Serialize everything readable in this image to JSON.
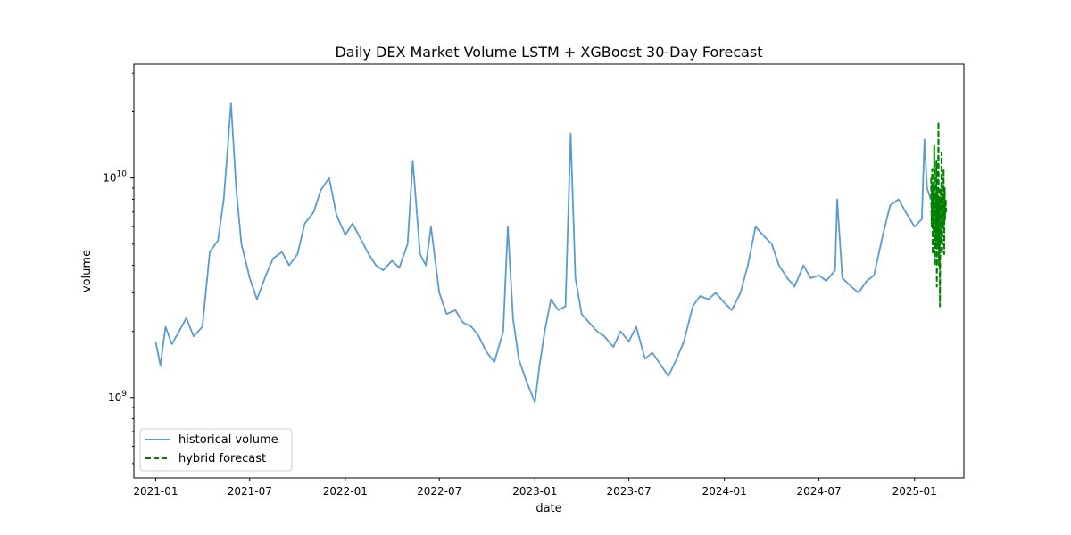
{
  "chart_data": {
    "type": "line",
    "title": "Daily DEX Market Volume LSTM + XGBoost 30-Day Forecast",
    "xlabel": "date",
    "ylabel": "volume",
    "y_scale": "log",
    "xlim": [
      "2020-11-20",
      "2025-04-06"
    ],
    "ylim": [
      430000000,
      33000000000
    ],
    "x_ticks": [
      "2021-01-01",
      "2021-07-01",
      "2022-01-01",
      "2022-07-01",
      "2023-01-01",
      "2023-07-01",
      "2024-01-01",
      "2024-07-01",
      "2025-01-01"
    ],
    "x_tick_labels": [
      "2021-01",
      "2021-07",
      "2022-01",
      "2022-07",
      "2023-01",
      "2023-07",
      "2024-01",
      "2024-07",
      "2025-01"
    ],
    "y_ticks": [
      1000000000,
      10000000000
    ],
    "y_tick_labels": [
      [
        "10",
        "9"
      ],
      [
        "10",
        "10"
      ]
    ],
    "grid": false,
    "legend_position": "lower-left",
    "series": [
      {
        "name": "historical volume",
        "color": "#5a9bd0",
        "style": "solid",
        "points": [
          [
            "2021-01-01",
            1800000000
          ],
          [
            "2021-01-10",
            1400000000
          ],
          [
            "2021-01-20",
            2100000000
          ],
          [
            "2021-02-01",
            1750000000
          ],
          [
            "2021-02-15",
            2000000000
          ],
          [
            "2021-03-01",
            2300000000
          ],
          [
            "2021-03-15",
            1900000000
          ],
          [
            "2021-04-01",
            2100000000
          ],
          [
            "2021-04-15",
            4600000000
          ],
          [
            "2021-05-01",
            5200000000
          ],
          [
            "2021-05-12",
            8000000000
          ],
          [
            "2021-05-20",
            14000000000
          ],
          [
            "2021-05-26",
            22000000000
          ],
          [
            "2021-06-05",
            9000000000
          ],
          [
            "2021-06-15",
            5000000000
          ],
          [
            "2021-07-01",
            3500000000
          ],
          [
            "2021-07-15",
            2800000000
          ],
          [
            "2021-08-01",
            3600000000
          ],
          [
            "2021-08-15",
            4300000000
          ],
          [
            "2021-09-01",
            4600000000
          ],
          [
            "2021-09-15",
            4000000000
          ],
          [
            "2021-10-01",
            4500000000
          ],
          [
            "2021-10-15",
            6200000000
          ],
          [
            "2021-11-01",
            7000000000
          ],
          [
            "2021-11-15",
            8800000000
          ],
          [
            "2021-12-01",
            10000000000
          ],
          [
            "2021-12-15",
            6800000000
          ],
          [
            "2022-01-01",
            5500000000
          ],
          [
            "2022-01-15",
            6200000000
          ],
          [
            "2022-02-01",
            5200000000
          ],
          [
            "2022-02-15",
            4500000000
          ],
          [
            "2022-03-01",
            4000000000
          ],
          [
            "2022-03-15",
            3800000000
          ],
          [
            "2022-04-01",
            4200000000
          ],
          [
            "2022-04-15",
            3900000000
          ],
          [
            "2022-05-01",
            5000000000
          ],
          [
            "2022-05-11",
            12000000000
          ],
          [
            "2022-05-25",
            4500000000
          ],
          [
            "2022-06-05",
            4000000000
          ],
          [
            "2022-06-15",
            6000000000
          ],
          [
            "2022-07-01",
            3000000000
          ],
          [
            "2022-07-15",
            2400000000
          ],
          [
            "2022-08-01",
            2500000000
          ],
          [
            "2022-08-15",
            2200000000
          ],
          [
            "2022-09-01",
            2100000000
          ],
          [
            "2022-09-15",
            1900000000
          ],
          [
            "2022-10-01",
            1600000000
          ],
          [
            "2022-10-15",
            1450000000
          ],
          [
            "2022-11-01",
            2000000000
          ],
          [
            "2022-11-10",
            6000000000
          ],
          [
            "2022-11-20",
            2300000000
          ],
          [
            "2022-12-01",
            1500000000
          ],
          [
            "2022-12-15",
            1200000000
          ],
          [
            "2023-01-01",
            950000000
          ],
          [
            "2023-01-10",
            1400000000
          ],
          [
            "2023-01-20",
            2000000000
          ],
          [
            "2023-02-01",
            2800000000
          ],
          [
            "2023-02-15",
            2500000000
          ],
          [
            "2023-03-01",
            2600000000
          ],
          [
            "2023-03-11",
            16000000000
          ],
          [
            "2023-03-20",
            3500000000
          ],
          [
            "2023-04-01",
            2400000000
          ],
          [
            "2023-04-15",
            2200000000
          ],
          [
            "2023-05-01",
            2000000000
          ],
          [
            "2023-05-15",
            1900000000
          ],
          [
            "2023-06-01",
            1700000000
          ],
          [
            "2023-06-15",
            2000000000
          ],
          [
            "2023-07-01",
            1800000000
          ],
          [
            "2023-07-15",
            2100000000
          ],
          [
            "2023-08-01",
            1500000000
          ],
          [
            "2023-08-15",
            1600000000
          ],
          [
            "2023-09-01",
            1400000000
          ],
          [
            "2023-09-15",
            1250000000
          ],
          [
            "2023-10-01",
            1500000000
          ],
          [
            "2023-10-15",
            1800000000
          ],
          [
            "2023-11-01",
            2600000000
          ],
          [
            "2023-11-15",
            2900000000
          ],
          [
            "2023-12-01",
            2800000000
          ],
          [
            "2023-12-15",
            3000000000
          ],
          [
            "2024-01-01",
            2700000000
          ],
          [
            "2024-01-15",
            2500000000
          ],
          [
            "2024-02-01",
            3000000000
          ],
          [
            "2024-02-15",
            4000000000
          ],
          [
            "2024-03-01",
            6000000000
          ],
          [
            "2024-03-15",
            5500000000
          ],
          [
            "2024-04-01",
            5000000000
          ],
          [
            "2024-04-15",
            4000000000
          ],
          [
            "2024-05-01",
            3500000000
          ],
          [
            "2024-05-15",
            3200000000
          ],
          [
            "2024-06-01",
            4000000000
          ],
          [
            "2024-06-15",
            3500000000
          ],
          [
            "2024-07-01",
            3600000000
          ],
          [
            "2024-07-15",
            3400000000
          ],
          [
            "2024-08-01",
            3800000000
          ],
          [
            "2024-08-05",
            8000000000
          ],
          [
            "2024-08-15",
            3500000000
          ],
          [
            "2024-09-01",
            3200000000
          ],
          [
            "2024-09-15",
            3000000000
          ],
          [
            "2024-10-01",
            3400000000
          ],
          [
            "2024-10-15",
            3600000000
          ],
          [
            "2024-11-01",
            5500000000
          ],
          [
            "2024-11-15",
            7500000000
          ],
          [
            "2024-12-01",
            8000000000
          ],
          [
            "2024-12-15",
            7000000000
          ],
          [
            "2025-01-01",
            6000000000
          ],
          [
            "2025-01-15",
            6500000000
          ],
          [
            "2025-01-20",
            15000000000
          ],
          [
            "2025-01-25",
            9000000000
          ],
          [
            "2025-02-01",
            8000000000
          ]
        ]
      },
      {
        "name": "hybrid forecast",
        "color": "#008000",
        "style": "dashed",
        "points": [
          [
            "2025-02-02",
            10000000000
          ],
          [
            "2025-02-03",
            6000000000
          ],
          [
            "2025-02-04",
            11000000000
          ],
          [
            "2025-02-05",
            4500000000
          ],
          [
            "2025-02-06",
            9000000000
          ],
          [
            "2025-02-07",
            5500000000
          ],
          [
            "2025-02-08",
            14000000000
          ],
          [
            "2025-02-09",
            4000000000
          ],
          [
            "2025-02-10",
            8500000000
          ],
          [
            "2025-02-11",
            5000000000
          ],
          [
            "2025-02-12",
            12000000000
          ],
          [
            "2025-02-13",
            3200000000
          ],
          [
            "2025-02-14",
            9000000000
          ],
          [
            "2025-02-15",
            5000000000
          ],
          [
            "2025-02-16",
            18000000000
          ],
          [
            "2025-02-17",
            4000000000
          ],
          [
            "2025-02-18",
            8000000000
          ],
          [
            "2025-02-19",
            2600000000
          ],
          [
            "2025-02-20",
            9000000000
          ],
          [
            "2025-02-21",
            5000000000
          ],
          [
            "2025-02-22",
            13000000000
          ],
          [
            "2025-02-23",
            4500000000
          ],
          [
            "2025-02-24",
            8500000000
          ],
          [
            "2025-02-25",
            6000000000
          ],
          [
            "2025-02-26",
            11000000000
          ],
          [
            "2025-02-27",
            4500000000
          ],
          [
            "2025-02-28",
            9000000000
          ],
          [
            "2025-03-01",
            6500000000
          ],
          [
            "2025-03-02",
            8000000000
          ],
          [
            "2025-03-03",
            7000000000
          ]
        ]
      }
    ]
  }
}
